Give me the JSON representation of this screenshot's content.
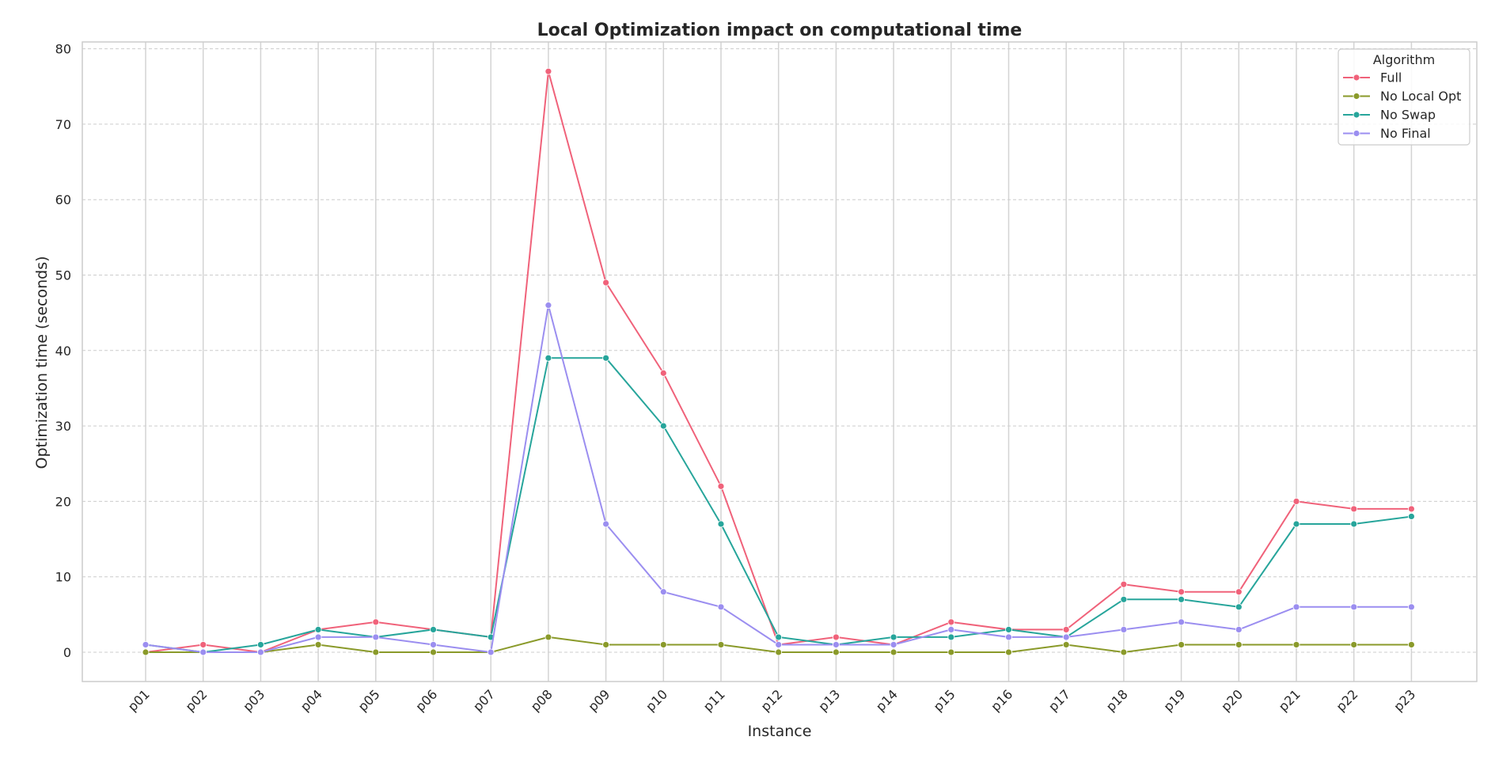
{
  "chart_data": {
    "type": "line",
    "title": "Local Optimization impact on computational time",
    "xlabel": "Instance",
    "ylabel": "Optimization time (seconds)",
    "categories": [
      "p01",
      "p02",
      "p03",
      "p04",
      "p05",
      "p06",
      "p07",
      "p08",
      "p09",
      "p10",
      "p11",
      "p12",
      "p13",
      "p14",
      "p15",
      "p16",
      "p17",
      "p18",
      "p19",
      "p20",
      "p21",
      "p22",
      "p23"
    ],
    "yticks": [
      0,
      10,
      20,
      30,
      40,
      50,
      60,
      70,
      80
    ],
    "ylim": [
      -3.8,
      81
    ],
    "grid": true,
    "legend": {
      "title": "Algorithm",
      "placement": "top-right"
    },
    "series": [
      {
        "name": "Full",
        "color": "#f0627a",
        "values": [
          0,
          1,
          0,
          3,
          4,
          3,
          2,
          77,
          49,
          37,
          22,
          1,
          2,
          1,
          4,
          3,
          3,
          9,
          8,
          8,
          20,
          19,
          19
        ]
      },
      {
        "name": "No Local Opt",
        "color": "#8a9a2a",
        "values": [
          0,
          0,
          0,
          1,
          0,
          0,
          0,
          2,
          1,
          1,
          1,
          0,
          0,
          0,
          0,
          0,
          1,
          0,
          1,
          1,
          1,
          1,
          1
        ]
      },
      {
        "name": "No Swap",
        "color": "#27a59b",
        "values": [
          1,
          0,
          1,
          3,
          2,
          3,
          2,
          39,
          39,
          30,
          17,
          2,
          1,
          2,
          2,
          3,
          2,
          7,
          7,
          6,
          17,
          17,
          18
        ]
      },
      {
        "name": "No Final",
        "color": "#9b8ef0",
        "values": [
          1,
          0,
          0,
          2,
          2,
          1,
          0,
          46,
          17,
          8,
          6,
          1,
          1,
          1,
          3,
          2,
          2,
          3,
          4,
          3,
          6,
          6,
          6
        ]
      }
    ]
  }
}
